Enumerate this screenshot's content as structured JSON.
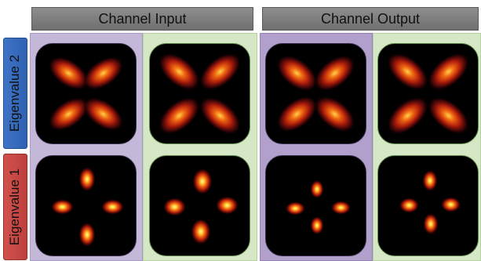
{
  "headers": {
    "input": "Channel Input",
    "output": "Channel Output"
  },
  "row_labels": {
    "eigenvalue2": "Eigenvalue 2",
    "eigenvalue1": "Eigenvalue 1"
  },
  "colors": {
    "header_bg": "#7a7a7a",
    "eigenvalue2_bg": "#3a6cbd",
    "eigenvalue1_bg": "#c94a47",
    "input_panel_purple": "#c4b8d8",
    "input_panel_green": "#d6e7c6",
    "output_panel_purple": "#b0a0cb",
    "output_panel_green": "#d6e7c6",
    "tile_background": "#000000"
  }
}
